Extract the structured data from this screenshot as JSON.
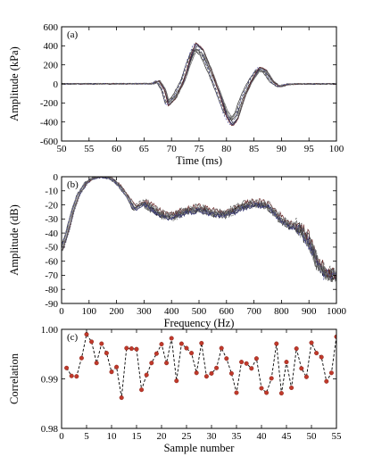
{
  "chart_data": [
    {
      "type": "line",
      "panel_label": "(a)",
      "xlabel": "Time (ms)",
      "ylabel": "Amplitude (kPa)",
      "xlim": [
        50,
        100
      ],
      "ylim": [
        -600,
        600
      ],
      "xticks": [
        50,
        55,
        60,
        65,
        70,
        75,
        80,
        85,
        90,
        95,
        100
      ],
      "yticks": [
        -600,
        -400,
        -200,
        0,
        200,
        400,
        600
      ],
      "grid": false,
      "series_count": 12,
      "series": [
        {
          "x": [
            50,
            66.5,
            67.5,
            68.5,
            69.2,
            70.5,
            72,
            73.2,
            74.2,
            75.5,
            77,
            78.5,
            79.8,
            80.8,
            81.8,
            83,
            84.5,
            85.8,
            87,
            88.3,
            89.5,
            91,
            93,
            100
          ],
          "values": [
            0,
            2,
            30,
            -60,
            -210,
            -140,
            30,
            250,
            390,
            330,
            130,
            -100,
            -310,
            -400,
            -340,
            -130,
            50,
            160,
            130,
            20,
            -30,
            -5,
            0,
            0
          ]
        }
      ]
    },
    {
      "type": "line",
      "panel_label": "(b)",
      "xlabel": "Frequency (Hz)",
      "ylabel": "Amplitude (dB)",
      "xlim": [
        0,
        1000
      ],
      "ylim": [
        -90,
        0
      ],
      "xticks": [
        0,
        100,
        200,
        300,
        400,
        500,
        600,
        700,
        800,
        900,
        1000
      ],
      "yticks": [
        0,
        -10,
        -20,
        -30,
        -40,
        -50,
        -60,
        -70,
        -80,
        -90
      ],
      "grid": false,
      "series_count": 12,
      "series": [
        {
          "x": [
            0,
            20,
            40,
            60,
            90,
            120,
            150,
            180,
            210,
            240,
            265,
            280,
            300,
            330,
            360,
            400,
            450,
            500,
            550,
            600,
            650,
            700,
            750,
            800,
            830,
            860,
            900,
            930,
            960,
            1000
          ],
          "values": [
            -52,
            -40,
            -25,
            -13,
            -4,
            -0.5,
            0,
            -1,
            -6,
            -14,
            -22,
            -20,
            -18,
            -22,
            -26,
            -28,
            -24,
            -22,
            -25,
            -26,
            -21,
            -18,
            -20,
            -30,
            -34,
            -35,
            -45,
            -60,
            -68,
            -70
          ]
        }
      ]
    },
    {
      "type": "line",
      "panel_label": "(c)",
      "xlabel": "Sample number",
      "ylabel": "Correlation",
      "xlim": [
        0,
        55
      ],
      "ylim": [
        0.98,
        1.0
      ],
      "xticks": [
        0,
        5,
        10,
        15,
        20,
        25,
        30,
        35,
        40,
        45,
        50,
        55
      ],
      "yticks": [
        0.98,
        0.99,
        1.0
      ],
      "ytick_labels": [
        "0.98",
        "0.99",
        "1.00"
      ],
      "grid": false,
      "line_style": "dashed",
      "marker_color": "#c0392b",
      "x": [
        1,
        2,
        3,
        4,
        5,
        6,
        7,
        8,
        9,
        10,
        11,
        12,
        13,
        14,
        15,
        16,
        17,
        18,
        19,
        20,
        21,
        22,
        23,
        24,
        25,
        26,
        27,
        28,
        29,
        30,
        31,
        32,
        33,
        34,
        35,
        36,
        37,
        38,
        39,
        40,
        41,
        42,
        43,
        44,
        45,
        46,
        47,
        48,
        49,
        50,
        51,
        52,
        53,
        54,
        55
      ],
      "values": [
        0.9922,
        0.9906,
        0.9905,
        0.9942,
        0.999,
        0.9975,
        0.9932,
        0.9971,
        0.9952,
        0.9914,
        0.9924,
        0.9862,
        0.9962,
        0.9961,
        0.996,
        0.9878,
        0.9908,
        0.9932,
        0.9951,
        0.997,
        0.9932,
        0.9982,
        0.9896,
        0.9971,
        0.9962,
        0.9952,
        0.9912,
        0.9972,
        0.9905,
        0.9911,
        0.9922,
        0.9962,
        0.9941,
        0.9911,
        0.9872,
        0.9934,
        0.9931,
        0.9921,
        0.9941,
        0.9881,
        0.9872,
        0.9901,
        0.9971,
        0.9871,
        0.9934,
        0.9882,
        0.9961,
        0.9921,
        0.9904,
        0.9973,
        0.9952,
        0.9944,
        0.9895,
        0.9912,
        0.9985
      ]
    }
  ]
}
